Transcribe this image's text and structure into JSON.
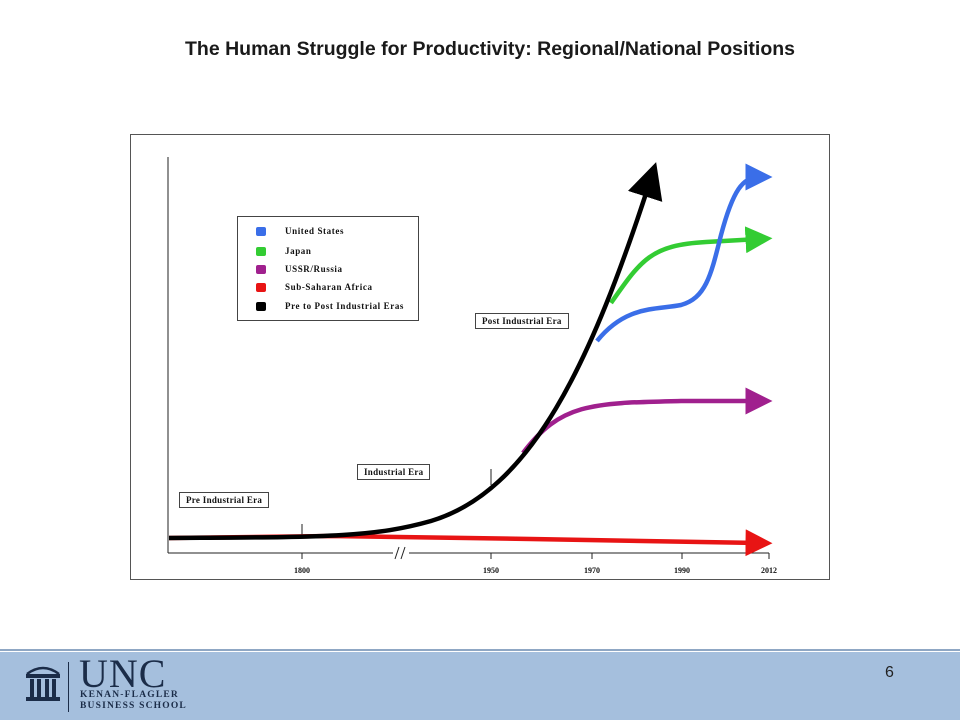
{
  "title": "The Human Struggle for Productivity: Regional/National Positions",
  "legend": [
    {
      "label": "United States",
      "color": "#3a6ee8"
    },
    {
      "label": "Japan",
      "color": "#33cc33"
    },
    {
      "label": "USSR/Russia",
      "color": "#a0208e"
    },
    {
      "label": "Sub-Saharan Africa",
      "color": "#e81414"
    },
    {
      "label": "Pre to Post Industrial Eras",
      "color": "#000000"
    }
  ],
  "era_labels": {
    "pre": "Pre Industrial Era",
    "industrial": "Industrial Era",
    "post": "Post Industrial Era"
  },
  "x_ticks": [
    "1800",
    "1950",
    "1970",
    "1990",
    "2012"
  ],
  "axis_break": "//",
  "page_number": "6",
  "logo": {
    "name": "UNC",
    "line1": "KENAN-FLAGLER",
    "line2": "BUSINESS SCHOOL"
  },
  "colors": {
    "us": "#3a6ee8",
    "japan": "#33cc33",
    "ussr": "#a0208e",
    "africa": "#e81414",
    "eras": "#000000",
    "footer": "#a5bfdd",
    "logo_navy": "#1b2c48"
  }
}
